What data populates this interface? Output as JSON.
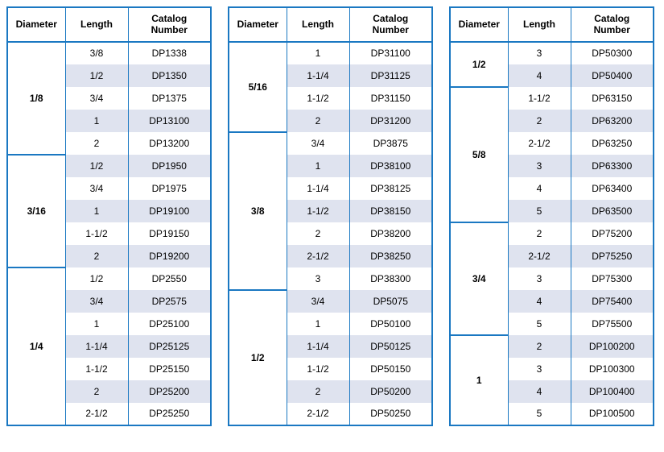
{
  "headers": {
    "diameter": "Diameter",
    "length": "Length",
    "catalog": "Catalog Number"
  },
  "columns": [
    {
      "groups": [
        {
          "diameter": "1/8",
          "rows": [
            {
              "length": "3/8",
              "catalog": "DP1338",
              "alt": false
            },
            {
              "length": "1/2",
              "catalog": "DP1350",
              "alt": true
            },
            {
              "length": "3/4",
              "catalog": "DP1375",
              "alt": false
            },
            {
              "length": "1",
              "catalog": "DP13100",
              "alt": true
            },
            {
              "length": "2",
              "catalog": "DP13200",
              "alt": false
            }
          ]
        },
        {
          "diameter": "3/16",
          "rows": [
            {
              "length": "1/2",
              "catalog": "DP1950",
              "alt": true
            },
            {
              "length": "3/4",
              "catalog": "DP1975",
              "alt": false
            },
            {
              "length": "1",
              "catalog": "DP19100",
              "alt": true
            },
            {
              "length": "1-1/2",
              "catalog": "DP19150",
              "alt": false
            },
            {
              "length": "2",
              "catalog": "DP19200",
              "alt": true
            }
          ]
        },
        {
          "diameter": "1/4",
          "rows": [
            {
              "length": "1/2",
              "catalog": "DP2550",
              "alt": false
            },
            {
              "length": "3/4",
              "catalog": "DP2575",
              "alt": true
            },
            {
              "length": "1",
              "catalog": "DP25100",
              "alt": false
            },
            {
              "length": "1-1/4",
              "catalog": "DP25125",
              "alt": true
            },
            {
              "length": "1-1/2",
              "catalog": "DP25150",
              "alt": false
            },
            {
              "length": "2",
              "catalog": "DP25200",
              "alt": true
            },
            {
              "length": "2-1/2",
              "catalog": "DP25250",
              "alt": false
            }
          ]
        }
      ]
    },
    {
      "groups": [
        {
          "diameter": "5/16",
          "rows": [
            {
              "length": "1",
              "catalog": "DP31100",
              "alt": false
            },
            {
              "length": "1-1/4",
              "catalog": "DP31125",
              "alt": true
            },
            {
              "length": "1-1/2",
              "catalog": "DP31150",
              "alt": false
            },
            {
              "length": "2",
              "catalog": "DP31200",
              "alt": true
            }
          ]
        },
        {
          "diameter": "3/8",
          "rows": [
            {
              "length": "3/4",
              "catalog": "DP3875",
              "alt": false
            },
            {
              "length": "1",
              "catalog": "DP38100",
              "alt": true
            },
            {
              "length": "1-1/4",
              "catalog": "DP38125",
              "alt": false
            },
            {
              "length": "1-1/2",
              "catalog": "DP38150",
              "alt": true
            },
            {
              "length": "2",
              "catalog": "DP38200",
              "alt": false
            },
            {
              "length": "2-1/2",
              "catalog": "DP38250",
              "alt": true
            },
            {
              "length": "3",
              "catalog": "DP38300",
              "alt": false
            }
          ]
        },
        {
          "diameter": "1/2",
          "rows": [
            {
              "length": "3/4",
              "catalog": "DP5075",
              "alt": true
            },
            {
              "length": "1",
              "catalog": "DP50100",
              "alt": false
            },
            {
              "length": "1-1/4",
              "catalog": "DP50125",
              "alt": true
            },
            {
              "length": "1-1/2",
              "catalog": "DP50150",
              "alt": false
            },
            {
              "length": "2",
              "catalog": "DP50200",
              "alt": true
            },
            {
              "length": "2-1/2",
              "catalog": "DP50250",
              "alt": false
            }
          ]
        }
      ]
    },
    {
      "groups": [
        {
          "diameter": "1/2",
          "rows": [
            {
              "length": "3",
              "catalog": "DP50300",
              "alt": false
            },
            {
              "length": "4",
              "catalog": "DP50400",
              "alt": true
            }
          ]
        },
        {
          "diameter": "5/8",
          "rows": [
            {
              "length": "1-1/2",
              "catalog": "DP63150",
              "alt": false
            },
            {
              "length": "2",
              "catalog": "DP63200",
              "alt": true
            },
            {
              "length": "2-1/2",
              "catalog": "DP63250",
              "alt": false
            },
            {
              "length": "3",
              "catalog": "DP63300",
              "alt": true
            },
            {
              "length": "4",
              "catalog": "DP63400",
              "alt": false
            },
            {
              "length": "5",
              "catalog": "DP63500",
              "alt": true
            }
          ]
        },
        {
          "diameter": "3/4",
          "rows": [
            {
              "length": "2",
              "catalog": "DP75200",
              "alt": false
            },
            {
              "length": "2-1/2",
              "catalog": "DP75250",
              "alt": true
            },
            {
              "length": "3",
              "catalog": "DP75300",
              "alt": false
            },
            {
              "length": "4",
              "catalog": "DP75400",
              "alt": true
            },
            {
              "length": "5",
              "catalog": "DP75500",
              "alt": false
            }
          ]
        },
        {
          "diameter": "1",
          "rows": [
            {
              "length": "2",
              "catalog": "DP100200",
              "alt": true
            },
            {
              "length": "3",
              "catalog": "DP100300",
              "alt": false
            },
            {
              "length": "4",
              "catalog": "DP100400",
              "alt": true
            },
            {
              "length": "5",
              "catalog": "DP100500",
              "alt": false
            }
          ]
        }
      ]
    }
  ]
}
